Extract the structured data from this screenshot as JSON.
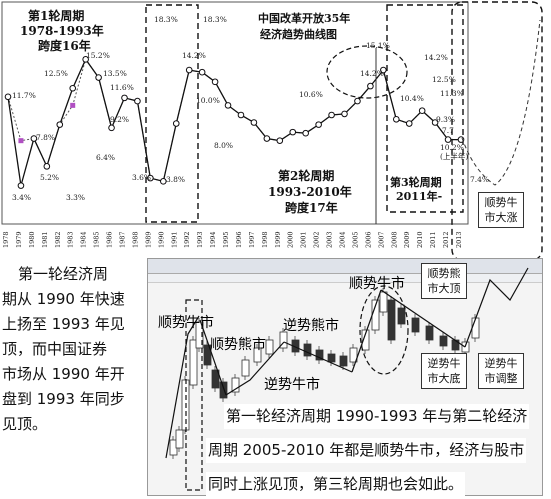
{
  "chart_data": {
    "type": "line",
    "title": "中国改革开放35年经济趋势曲线图",
    "title_line1": "中国改革开放35年",
    "title_line2": "经济趋势曲线图",
    "x": [
      "1978",
      "1979",
      "1980",
      "1981",
      "1982",
      "1983",
      "1984",
      "1985",
      "1986",
      "1987",
      "1988",
      "1989",
      "1990",
      "1991",
      "1992",
      "1993",
      "1994",
      "1995",
      "1996",
      "1997",
      "1998",
      "1999",
      "2000",
      "2001",
      "2002",
      "2003",
      "2004",
      "2005",
      "2006",
      "2007",
      "2008",
      "2009",
      "2010",
      "2011",
      "2012",
      "2013"
    ],
    "series": [
      {
        "values": [
          11.7,
          3.4,
          7.8,
          5.2,
          9.1,
          12.5,
          15.2,
          13.5,
          8.8,
          11.6,
          11.3,
          4.1,
          3.8,
          9.2,
          14.2,
          14.0,
          13.1,
          10.9,
          10.0,
          9.3,
          7.8,
          7.6,
          8.4,
          8.3,
          9.1,
          10.0,
          10.1,
          11.3,
          12.7,
          14.2,
          9.6,
          9.2,
          10.4,
          9.3,
          7.7,
          7.7
        ]
      },
      {
        "values": [
          11.7,
          7.6,
          7.8,
          5.2,
          9.1,
          10.9,
          15.2,
          13.5,
          8.8,
          11.6,
          11.3,
          4.1,
          3.8,
          9.2,
          14.2,
          14.0,
          13.1,
          10.9,
          10.0,
          9.3,
          7.8,
          7.6,
          8.4,
          8.3,
          9.1,
          10.0,
          10.1,
          11.3,
          12.7,
          14.2,
          9.6,
          9.2,
          10.4,
          9.3,
          7.7,
          7.7
        ]
      }
    ],
    "annotations": [
      "11.7%",
      "3.4%",
      "7.8%",
      "5.2%",
      "12.5%",
      "3.3%",
      "15.2%",
      "6.4%",
      "13.5%",
      "11.6%",
      "9.2%",
      "3.6%",
      "18.3%",
      "14.2%",
      "3.8%",
      "18.3%",
      "10.0%",
      "8.0%",
      "10.6%",
      "15.1%",
      "14.2%",
      "14.2%",
      "12.5%",
      "11.3%",
      "10.4%",
      "9.3%",
      "10.2%",
      "7.7",
      "(上半年)",
      "7.4%"
    ],
    "ylim": [
      0,
      20
    ]
  },
  "cycles": {
    "c1_line1": "第1轮周期",
    "c1_line2": "1978-1993年",
    "c1_line3": "跨度16年",
    "c2_line1": "第2轮周期",
    "c2_line2": "1993-2010年",
    "c2_line3": "跨度17年",
    "c3_line1": "第3轮周期",
    "c3_line2": "2011年-"
  },
  "left_paragraph": [
    "第一轮经济周",
    "期从 1990 年快速",
    "上扬至 1993 年见",
    "顶，而中国证券",
    "市场从 1990 年开",
    "盘到 1993 年同步",
    "见顶。"
  ],
  "bottom_paragraph": {
    "line1": "第一轮经济周期 1990-1993 年与第二轮经济",
    "line2": "周期 2005-2010 年都是顺势牛市，经济与股市",
    "line3": "同时上涨见顶，第三轮周期也会如此。"
  },
  "stock_labels": {
    "bull1": "顺势牛市",
    "bear1": "顺势熊市",
    "bear_rev": "逆势熊市",
    "bull_rev": "逆势牛市",
    "bull2": "顺势牛市",
    "bear_top_1": "顺势熊",
    "bear_top_2": "市大顶",
    "bull_bottom_1": "逆势牛",
    "bull_bottom_2": "市大底",
    "bull_adj_1": "逆势牛",
    "bull_adj_2": "市调整",
    "bull_up_1": "顺势牛",
    "bull_up_2": "市大涨"
  }
}
